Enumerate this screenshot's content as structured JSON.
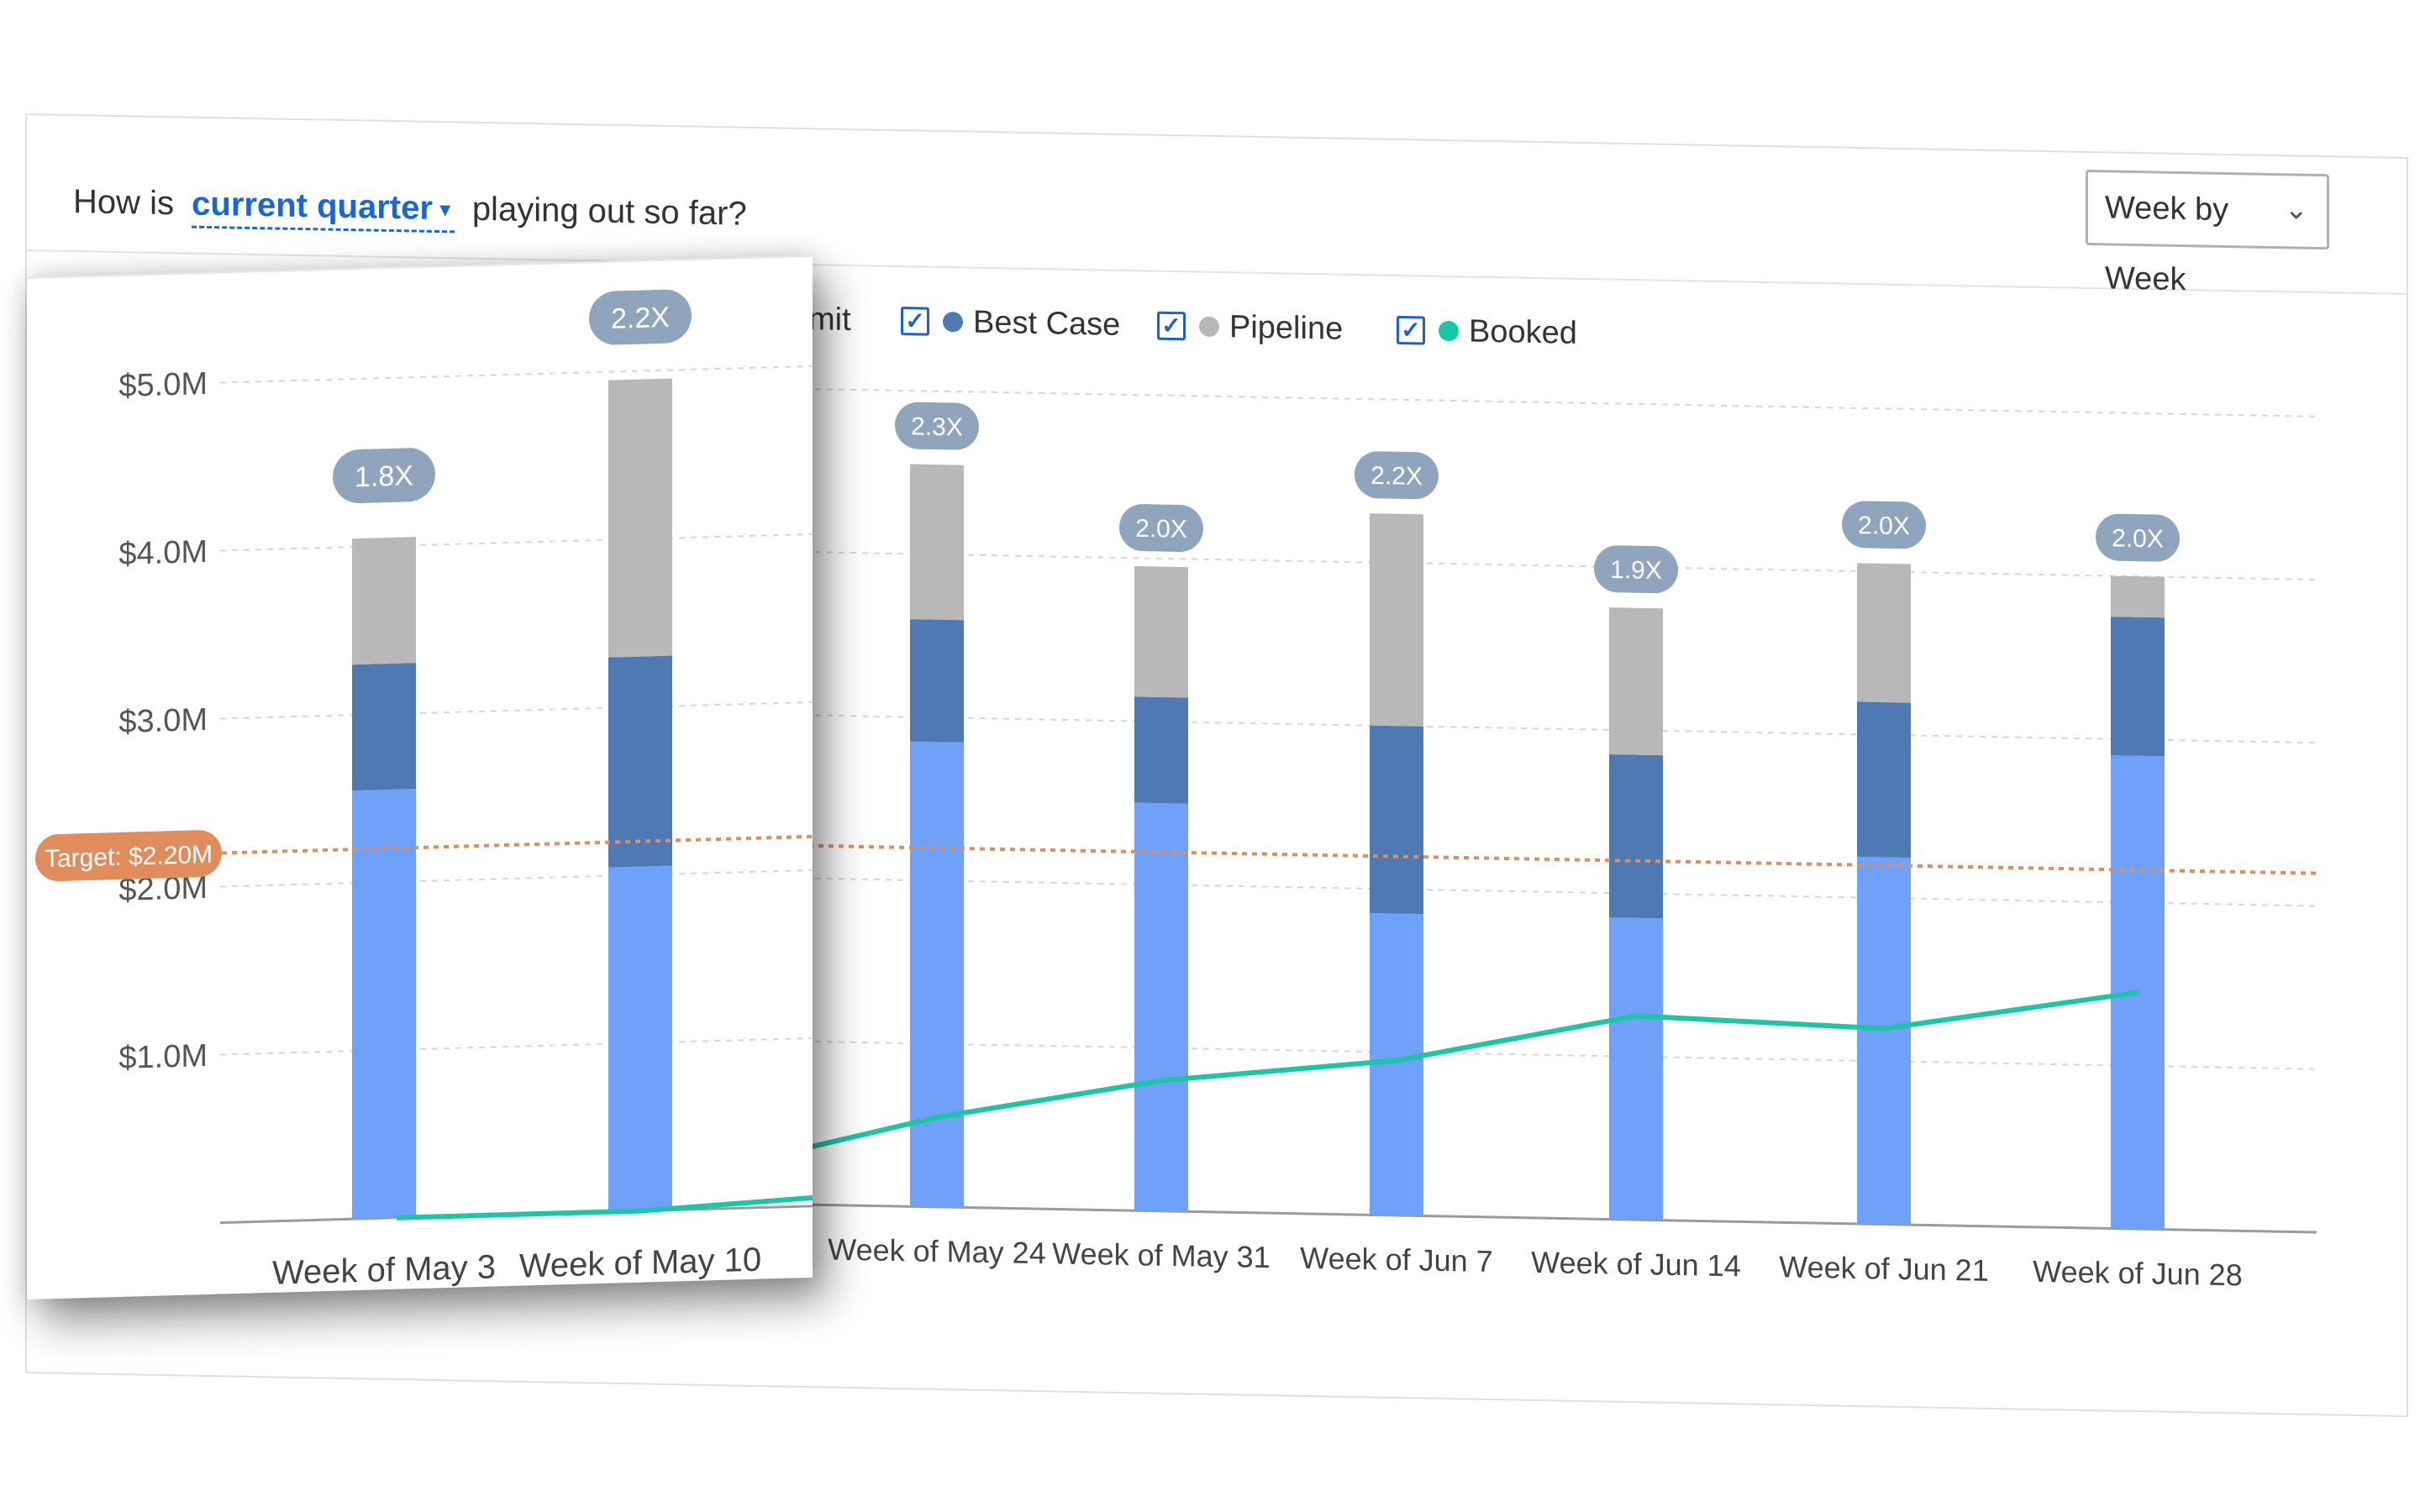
{
  "header": {
    "question_prefix": "How is",
    "period_dropdown": "current quarter",
    "question_suffix": "playing out so far?",
    "view_select": "Week by Week"
  },
  "legend": {
    "partial_label": "mit",
    "items": [
      {
        "label": "Best Case",
        "color": "#4f79b3",
        "checked": true
      },
      {
        "label": "Pipeline",
        "color": "#b8b8b8",
        "checked": true
      },
      {
        "label": "Booked",
        "color": "#1bc6a5",
        "checked": true
      }
    ]
  },
  "chart_data": {
    "type": "bar",
    "stacked": true,
    "categories": [
      "Week of May 3",
      "Week of May 10",
      "Week of May 24",
      "Week of May 31",
      "Week of Jun 7",
      "Week of Jun 14",
      "Week of Jun 21",
      "Week of Jun 28"
    ],
    "series": [
      {
        "name": "",
        "color": "#6ea1f7",
        "values": [
          2.55,
          2.05,
          2.85,
          2.5,
          1.85,
          1.85,
          2.25,
          2.9
        ]
      },
      {
        "name": "Best Case",
        "color": "#4f79b3",
        "values": [
          0.75,
          1.25,
          0.75,
          0.65,
          1.15,
          1.0,
          0.95,
          0.85
        ]
      },
      {
        "name": "Pipeline",
        "color": "#b8b8b8",
        "values": [
          0.75,
          1.65,
          0.95,
          0.8,
          1.3,
          0.9,
          0.85,
          0.25
        ]
      }
    ],
    "line": {
      "name": "Booked",
      "color": "#1bc6a5",
      "values": [
        0.0,
        0.0,
        0.55,
        0.8,
        0.95,
        1.25,
        1.2,
        1.45
      ]
    },
    "multiples": [
      "1.8X",
      "2.2X",
      "2.3X",
      "2.0X",
      "2.2X",
      "1.9X",
      "2.0X",
      "2.0X"
    ],
    "target": {
      "label": "Target: $2.20M",
      "value": 2.2,
      "color": "#e08c5c"
    },
    "yticks": [
      "$1.0M",
      "$2.0M",
      "$3.0M",
      "$4.0M",
      "$5.0M"
    ],
    "ytick_values": [
      1,
      2,
      3,
      4,
      5
    ],
    "ylim": [
      0,
      5.2
    ],
    "grid": true
  }
}
